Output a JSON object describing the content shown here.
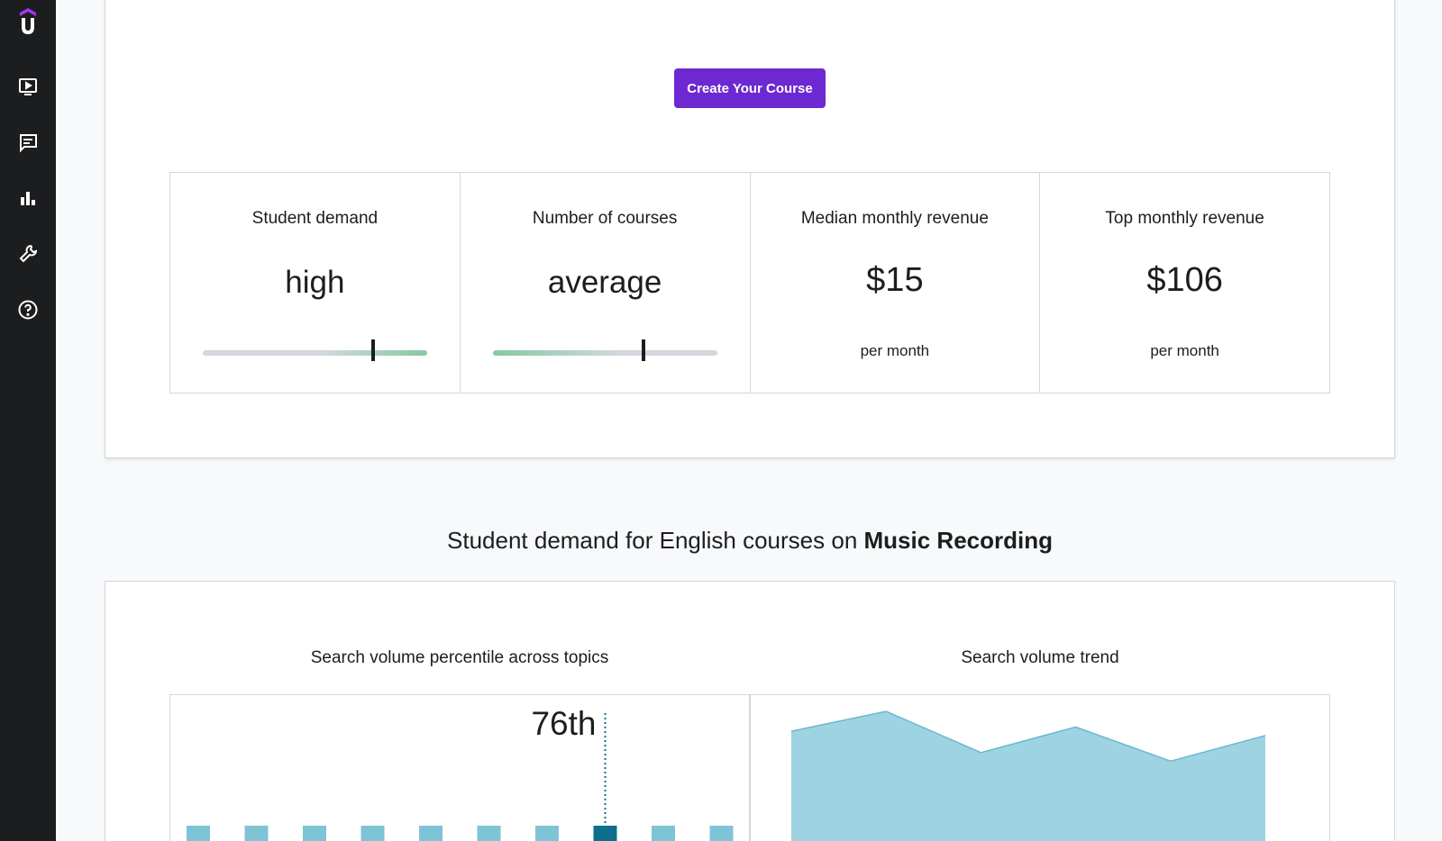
{
  "sidebar": {
    "items": [
      {
        "icon": "udemy-logo-icon"
      },
      {
        "icon": "video-icon"
      },
      {
        "icon": "chat-icon"
      },
      {
        "icon": "bar-chart-icon"
      },
      {
        "icon": "wrench-icon"
      },
      {
        "icon": "help-icon"
      }
    ],
    "brand_color": "#a435f0"
  },
  "actions": {
    "create_course_label": "Create Your Course"
  },
  "stats": [
    {
      "label": "Student demand",
      "value": "high",
      "level": 0.76
    },
    {
      "label": "Number of courses",
      "value": "average",
      "level": 0.67
    },
    {
      "label": "Median monthly revenue",
      "value": "$15",
      "sub": "per month"
    },
    {
      "label": "Top monthly revenue",
      "value": "$106",
      "sub": "per month"
    }
  ],
  "demand_section": {
    "heading_prefix": "Student demand for English courses on ",
    "topic": "Music Recording"
  },
  "percentile_chart": {
    "title": "Search volume percentile across topics",
    "percentile_label": "76th",
    "bar_count": 10,
    "highlight_index": 7,
    "bar_color": "#7ec4d6",
    "highlight_color": "#0e6f8c"
  },
  "chart_data": {
    "type": "area",
    "title": "Search volume trend",
    "values": [
      86,
      100,
      71,
      89,
      65,
      83
    ],
    "ylim": [
      0,
      100
    ],
    "fill_color": "#9ed4e2",
    "line_color": "#6bb8d1"
  },
  "colors": {
    "accent": "#6d28d2",
    "meter_green": "#84c9a0",
    "meter_gray": "#d1d7dc"
  }
}
